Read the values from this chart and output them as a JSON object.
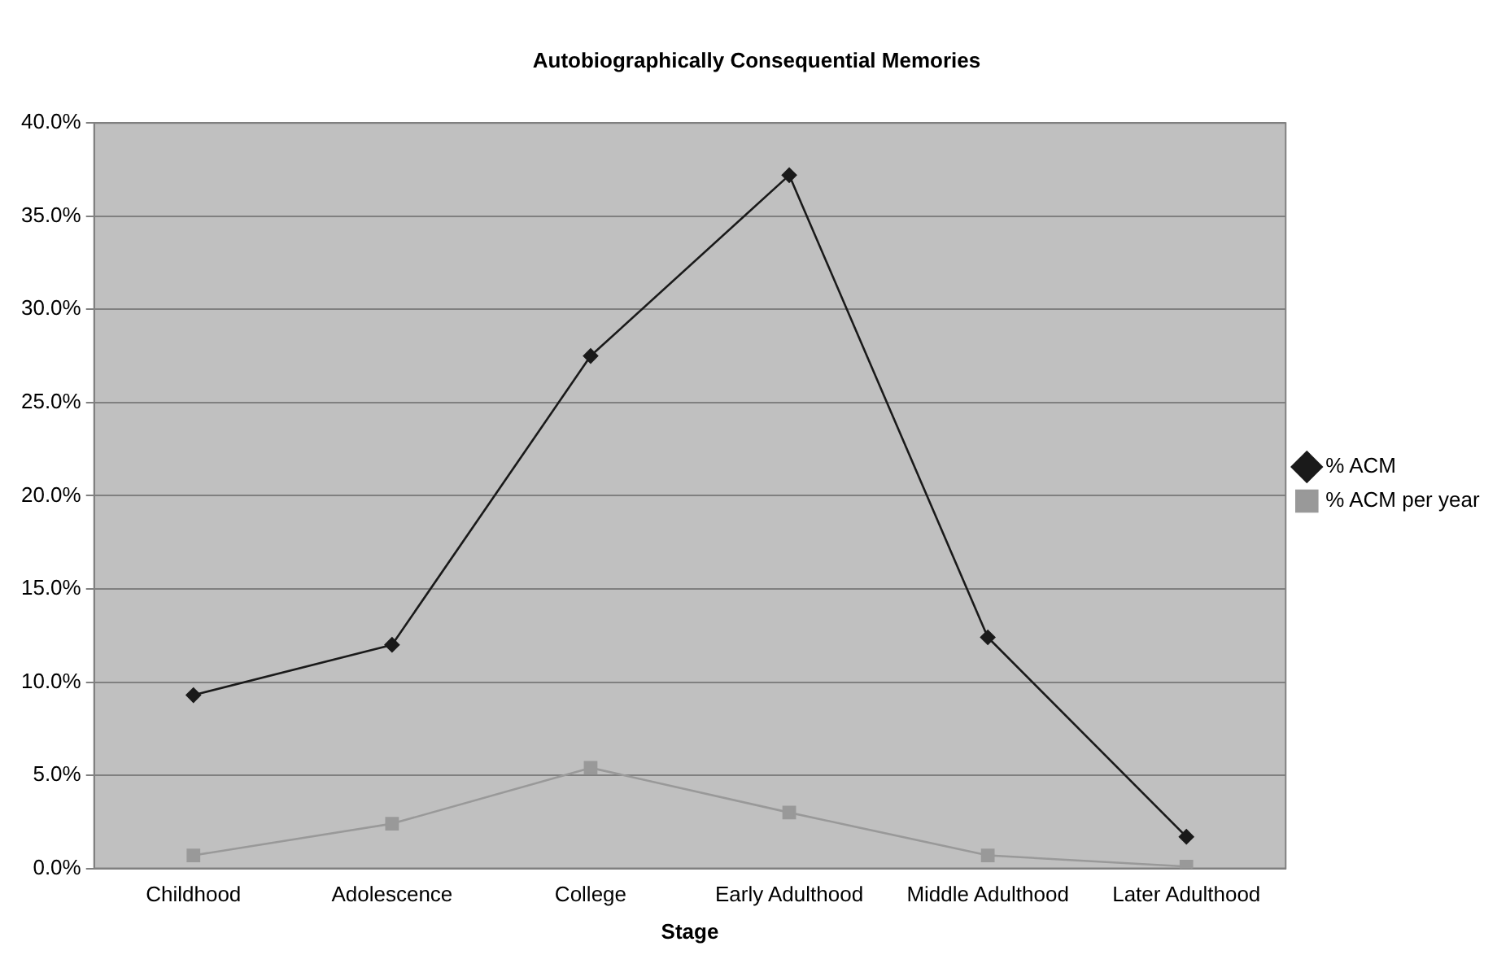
{
  "chart_data": {
    "type": "line",
    "title": "Autobiographically Consequential Memories",
    "xlabel": "Stage",
    "categories": [
      "Childhood",
      "Adolescence",
      "College",
      "Early Adulthood",
      "Middle Adulthood",
      "Later Adulthood"
    ],
    "series": [
      {
        "name": "% ACM",
        "color": "#1a1a1a",
        "marker": "diamond",
        "values": [
          9.3,
          12.0,
          27.5,
          37.2,
          12.4,
          1.7
        ]
      },
      {
        "name": "% ACM per year",
        "color": "#999999",
        "marker": "square",
        "values": [
          0.7,
          2.4,
          5.4,
          3.0,
          0.7,
          0.1
        ]
      }
    ],
    "ylim": [
      0,
      40
    ],
    "yticks": [
      {
        "value": 0,
        "label": "0.0%"
      },
      {
        "value": 5,
        "label": "5.0%"
      },
      {
        "value": 10,
        "label": "10.0%"
      },
      {
        "value": 15,
        "label": "15.0%"
      },
      {
        "value": 20,
        "label": "20.0%"
      },
      {
        "value": 25,
        "label": "25.0%"
      },
      {
        "value": 30,
        "label": "30.0%"
      },
      {
        "value": 35,
        "label": "35.0%"
      },
      {
        "value": 40,
        "label": "40.0%"
      }
    ],
    "grid": "y",
    "legend": "right"
  }
}
